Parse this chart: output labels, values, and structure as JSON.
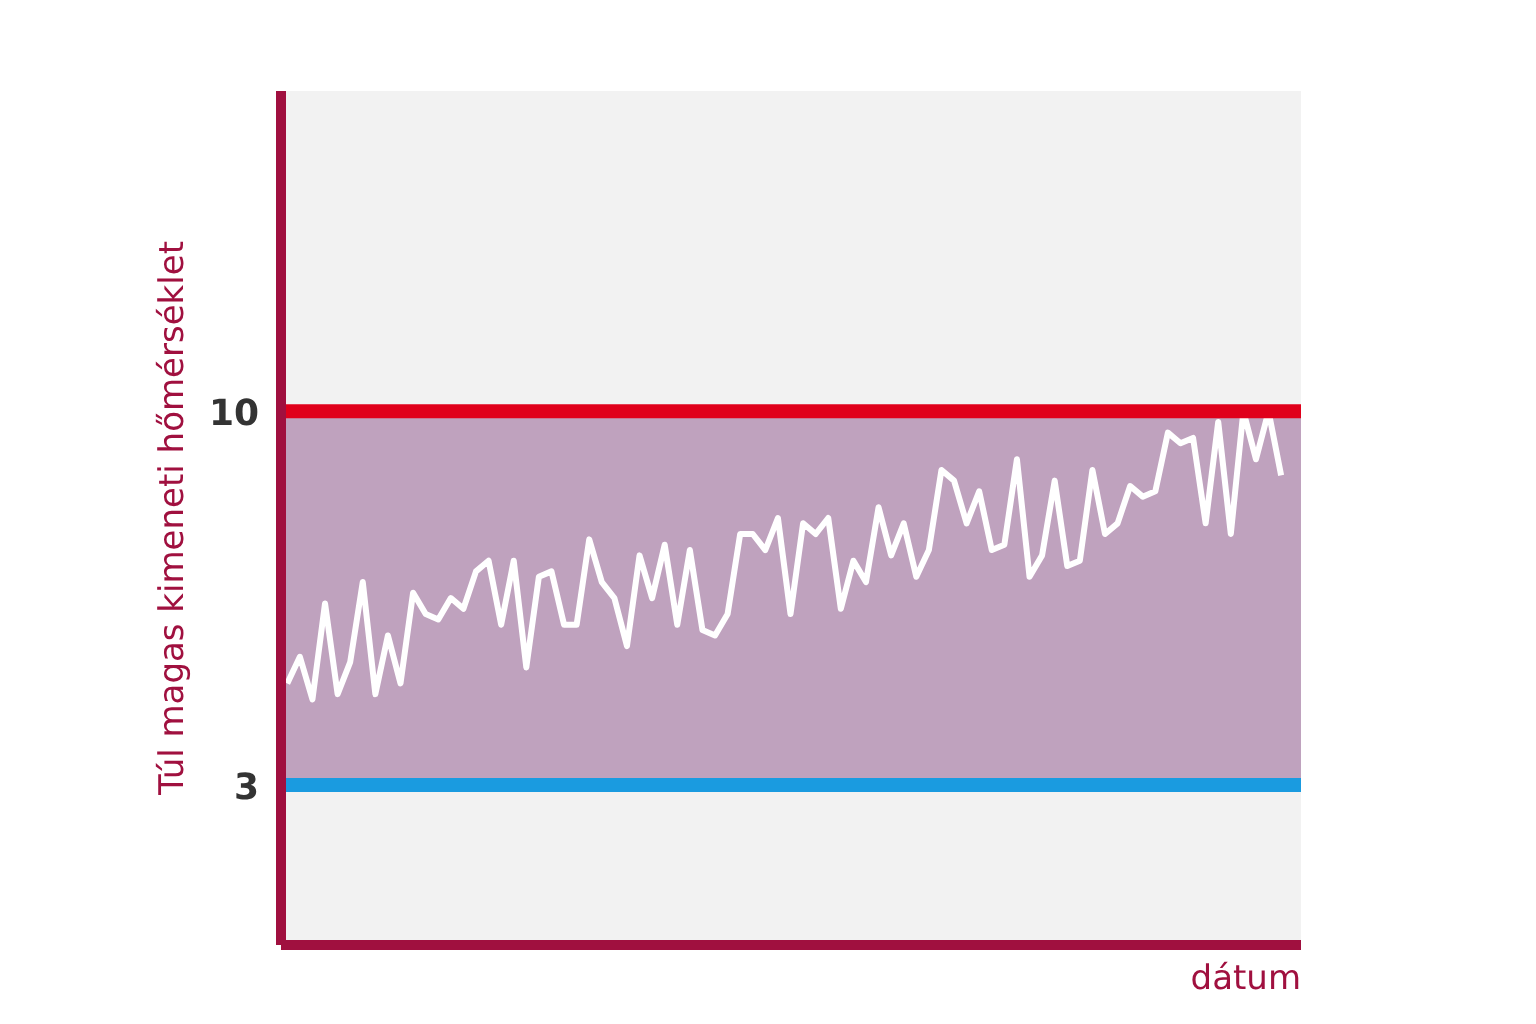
{
  "chart_data": {
    "type": "line",
    "xlabel": "dátum",
    "ylabel": "Túl magas kimeneti hőmérséklet",
    "categories": [
      null,
      null,
      null,
      null,
      null,
      null,
      null,
      null,
      null,
      null,
      null,
      null,
      null,
      null,
      null,
      null,
      null,
      null,
      null,
      null,
      null,
      null,
      null,
      null,
      null,
      null,
      null,
      null,
      null,
      null,
      null,
      null,
      null,
      null,
      null,
      null,
      null,
      null,
      null,
      null,
      null,
      null,
      null,
      null,
      null,
      null,
      null,
      null,
      null,
      null,
      null,
      null,
      null,
      null,
      null,
      null,
      null,
      null,
      null,
      null,
      null,
      null,
      null,
      null,
      null,
      null,
      null,
      null,
      null,
      null,
      null,
      null,
      null,
      null,
      null,
      null,
      null,
      null,
      null,
      null
    ],
    "series": [
      {
        "color": "#ffffff",
        "values": [
          4.9,
          5.4,
          4.6,
          6.4,
          4.7,
          5.3,
          6.8,
          4.7,
          5.8,
          4.9,
          6.6,
          6.2,
          6.1,
          6.5,
          6.3,
          7.0,
          7.2,
          6.0,
          7.2,
          5.2,
          6.9,
          7.0,
          6.0,
          6.0,
          7.6,
          6.8,
          6.5,
          5.6,
          7.3,
          6.5,
          7.5,
          6.0,
          7.4,
          5.9,
          5.8,
          6.2,
          7.7,
          7.7,
          7.4,
          8.0,
          6.2,
          7.9,
          7.7,
          8.0,
          6.3,
          7.2,
          6.8,
          8.2,
          7.3,
          7.9,
          6.9,
          7.4,
          8.9,
          8.7,
          7.9,
          8.5,
          7.4,
          7.5,
          9.1,
          6.9,
          7.3,
          8.7,
          7.1,
          7.2,
          8.9,
          7.7,
          7.9,
          8.6,
          8.4,
          8.5,
          9.6,
          9.4,
          9.5,
          7.9,
          9.8,
          7.7,
          10.0,
          9.1,
          10.0,
          8.8
        ]
      }
    ],
    "ylim": [
      0,
      16
    ],
    "yticks": [
      3,
      10
    ],
    "tick_labels": "y",
    "line_style": "solid",
    "ref_lines": [
      {
        "axis": "y",
        "value": 10,
        "color": "#e0001b"
      },
      {
        "axis": "y",
        "value": 3,
        "color": "#1a9be0"
      }
    ],
    "bands": [
      {
        "axis": "y",
        "from": 3,
        "to": 10,
        "color": "#bfa2be"
      }
    ]
  }
}
